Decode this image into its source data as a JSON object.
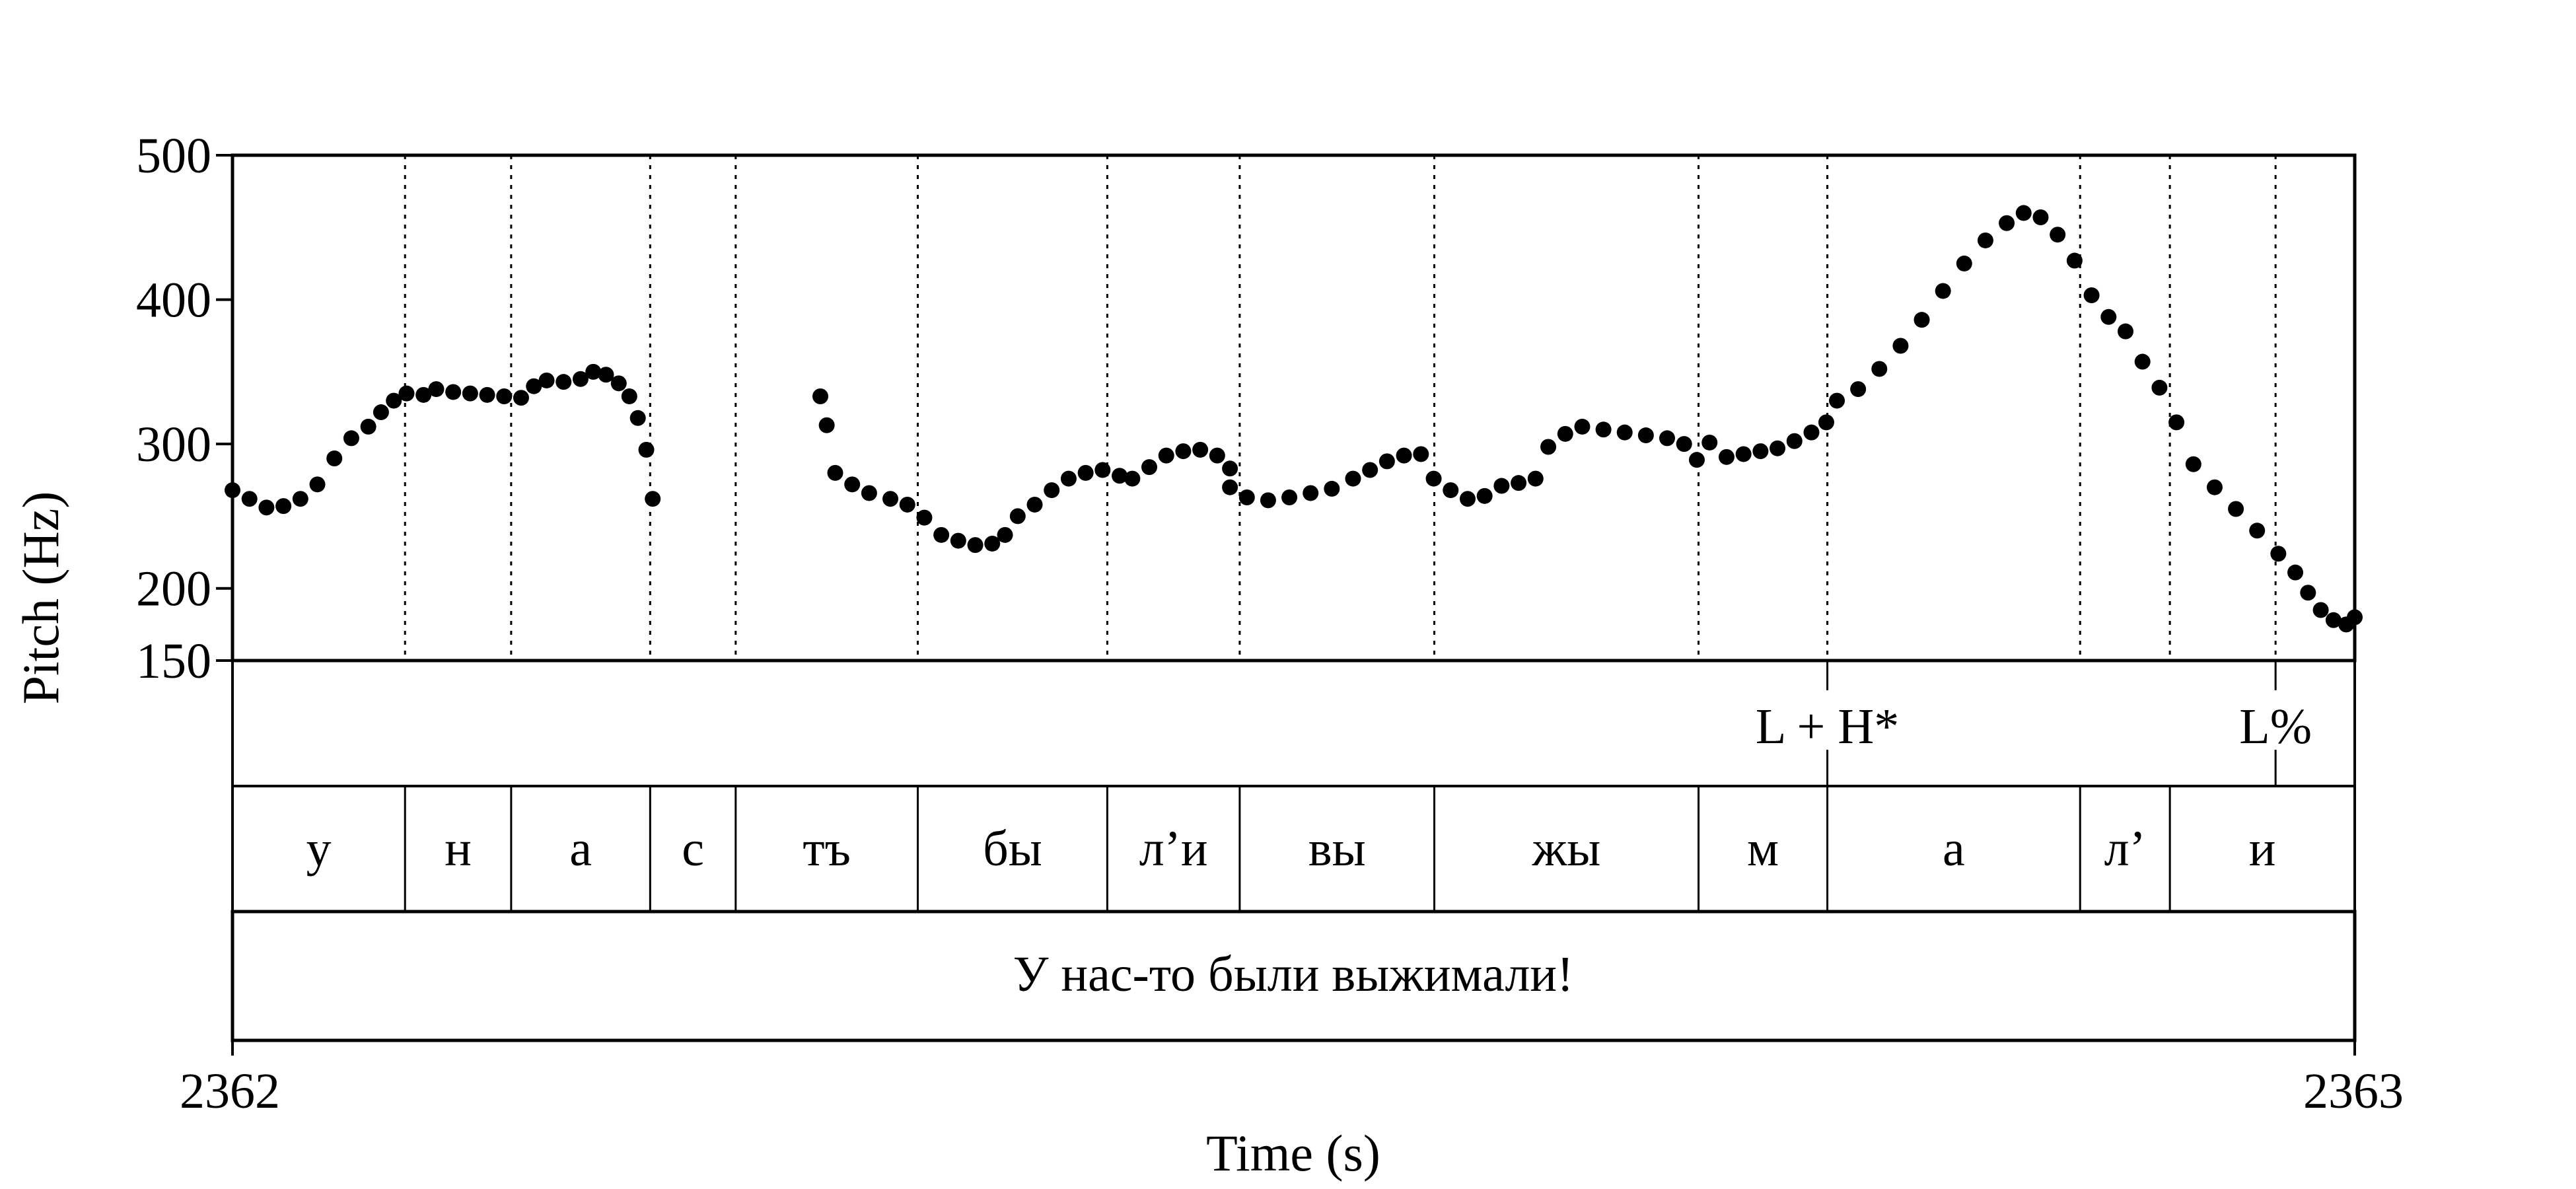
{
  "chart_data": {
    "type": "scatter",
    "title": "",
    "xlabel": "Time (s)",
    "ylabel": "Pitch (Hz)",
    "xlim": [
      2362,
      2363
    ],
    "ylim": [
      150,
      500
    ],
    "x_ticks": [
      "2362",
      "2363"
    ],
    "y_ticks": [
      "500",
      "400",
      "300",
      "200",
      "150"
    ],
    "boundaries": [
      2362.0813,
      2362.1313,
      2362.1968,
      2362.2371,
      2362.3229,
      2362.4122,
      2362.4746,
      2362.5663,
      2362.6908,
      2362.7515,
      2362.8706,
      2362.9129
    ],
    "tone_tier": [
      {
        "t": 2362.7515,
        "label": "L + H*"
      },
      {
        "t": 2362.9627,
        "label": "L%"
      }
    ],
    "segment_tier": [
      "у",
      "н",
      "а",
      "с",
      "тъ",
      "бы",
      "л’и",
      "вы",
      "жы",
      "м",
      "а",
      "л’",
      "и"
    ],
    "sentence": "У нас-то были выжимали!",
    "series": [
      {
        "color": "#000000",
        "segments": [
          {
            "x_start": 2362.0,
            "x_end": 2362.198,
            "points": [
              [
                2362.0,
                268
              ],
              [
                2362.008,
                262
              ],
              [
                2362.016,
                256
              ],
              [
                2362.024,
                257
              ],
              [
                2362.032,
                262
              ],
              [
                2362.04,
                272
              ],
              [
                2362.048,
                290
              ],
              [
                2362.056,
                304
              ],
              [
                2362.064,
                312
              ],
              [
                2362.07,
                322
              ],
              [
                2362.076,
                330
              ],
              [
                2362.082,
                335
              ],
              [
                2362.09,
                334
              ],
              [
                2362.096,
                338
              ],
              [
                2362.104,
                336
              ],
              [
                2362.112,
                335
              ],
              [
                2362.12,
                334
              ],
              [
                2362.128,
                333
              ],
              [
                2362.136,
                332
              ],
              [
                2362.142,
                340
              ],
              [
                2362.148,
                344
              ],
              [
                2362.156,
                343
              ],
              [
                2362.164,
                345
              ],
              [
                2362.17,
                350
              ],
              [
                2362.176,
                348
              ],
              [
                2362.182,
                342
              ],
              [
                2362.187,
                333
              ],
              [
                2362.191,
                318
              ],
              [
                2362.195,
                296
              ],
              [
                2362.198,
                262
              ]
            ]
          },
          {
            "x_start": 2362.277,
            "x_end": 2362.47,
            "points": [
              [
                2362.277,
                333
              ],
              [
                2362.28,
                313
              ],
              [
                2362.284,
                280
              ],
              [
                2362.292,
                272
              ],
              [
                2362.3,
                266
              ],
              [
                2362.31,
                262
              ],
              [
                2362.318,
                258
              ],
              [
                2362.326,
                249
              ],
              [
                2362.334,
                237
              ],
              [
                2362.342,
                233
              ],
              [
                2362.35,
                230
              ],
              [
                2362.358,
                231
              ],
              [
                2362.364,
                237
              ],
              [
                2362.37,
                250
              ],
              [
                2362.378,
                258
              ],
              [
                2362.386,
                268
              ],
              [
                2362.394,
                276
              ],
              [
                2362.402,
                280
              ],
              [
                2362.41,
                282
              ],
              [
                2362.418,
                278
              ],
              [
                2362.424,
                276
              ],
              [
                2362.432,
                284
              ],
              [
                2362.44,
                292
              ],
              [
                2362.448,
                295
              ],
              [
                2362.456,
                296
              ],
              [
                2362.464,
                292
              ],
              [
                2362.47,
                283
              ]
            ]
          },
          {
            "x_start": 2362.47,
            "x_end": 2362.985,
            "points": [
              [
                2362.47,
                270
              ],
              [
                2362.478,
                263
              ],
              [
                2362.488,
                261
              ],
              [
                2362.498,
                263
              ],
              [
                2362.508,
                266
              ],
              [
                2362.518,
                269
              ],
              [
                2362.528,
                276
              ],
              [
                2362.536,
                282
              ],
              [
                2362.544,
                288
              ],
              [
                2362.552,
                292
              ],
              [
                2362.56,
                293
              ],
              [
                2362.566,
                276
              ],
              [
                2362.574,
                268
              ],
              [
                2362.582,
                262
              ],
              [
                2362.59,
                264
              ],
              [
                2362.598,
                271
              ],
              [
                2362.606,
                273
              ],
              [
                2362.614,
                276
              ],
              [
                2362.62,
                298
              ],
              [
                2362.628,
                307
              ],
              [
                2362.636,
                312
              ],
              [
                2362.646,
                310
              ],
              [
                2362.656,
                308
              ],
              [
                2362.666,
                306
              ],
              [
                2362.676,
                304
              ],
              [
                2362.684,
                300
              ],
              [
                2362.69,
                289
              ],
              [
                2362.696,
                301
              ],
              [
                2362.704,
                291
              ],
              [
                2362.712,
                293
              ],
              [
                2362.72,
                295
              ],
              [
                2362.728,
                297
              ],
              [
                2362.736,
                302
              ],
              [
                2362.744,
                308
              ],
              [
                2362.751,
                315
              ],
              [
                2362.756,
                330
              ],
              [
                2362.766,
                338
              ],
              [
                2362.776,
                352
              ],
              [
                2362.786,
                368
              ],
              [
                2362.796,
                386
              ],
              [
                2362.806,
                406
              ],
              [
                2362.816,
                425
              ],
              [
                2362.826,
                441
              ],
              [
                2362.836,
                453
              ],
              [
                2362.844,
                460
              ],
              [
                2362.852,
                457
              ],
              [
                2362.86,
                445
              ],
              [
                2362.868,
                427
              ],
              [
                2362.876,
                403
              ],
              [
                2362.884,
                388
              ],
              [
                2362.892,
                378
              ],
              [
                2362.9,
                357
              ],
              [
                2362.908,
                339
              ],
              [
                2362.916,
                315
              ],
              [
                2362.924,
                286
              ],
              [
                2362.934,
                270
              ],
              [
                2362.944,
                255
              ],
              [
                2362.954,
                240
              ],
              [
                2362.964,
                224
              ],
              [
                2362.972,
                211
              ],
              [
                2362.978,
                197
              ],
              [
                2362.984,
                185
              ],
              [
                2362.99,
                178
              ],
              [
                2362.996,
                175
              ],
              [
                2363.0,
                180
              ]
            ]
          }
        ]
      }
    ]
  }
}
